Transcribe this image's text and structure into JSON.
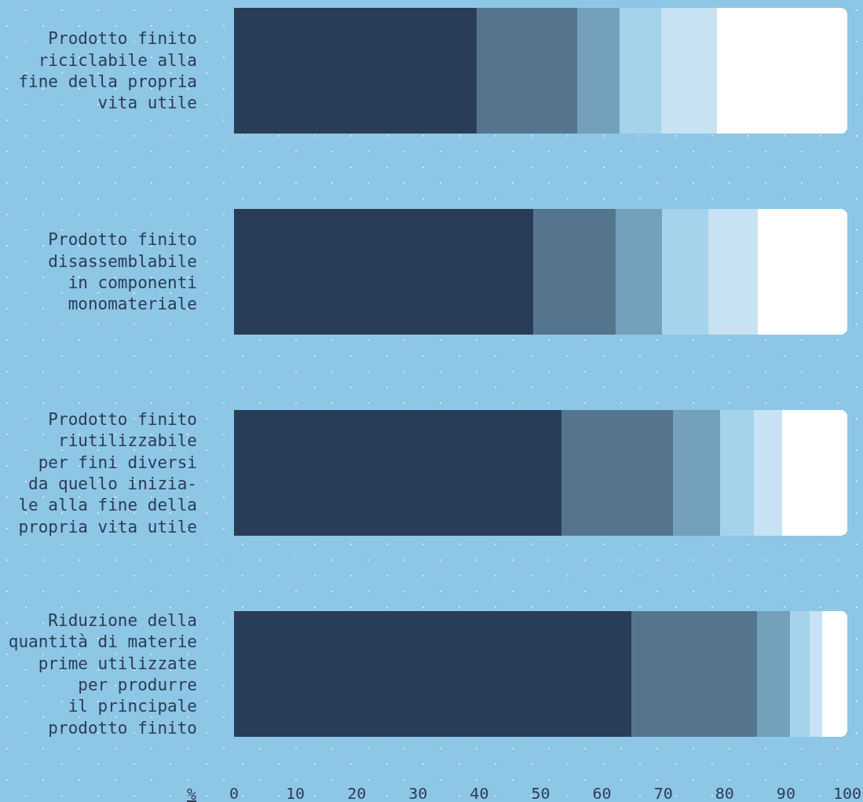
{
  "chart_data": {
    "type": "bar",
    "orientation": "horizontal",
    "stacked": true,
    "categories": [
      "Prodotto finito\nriciclabile alla\nfine della propria\nvita utile",
      "Prodotto finito\ndisassemblabile\nin componenti\nmonomateriale",
      "Prodotto finito\nriutilizzabile\nper fini diversi\nda quello inizia-\nle alla fine della\npropria vita utile",
      "Riduzione della\nquantità di materie\nprime utilizzate\nper produrre\nil principale\nprodotto finito"
    ],
    "series": [
      {
        "color": "#293d58",
        "values": [
          39.6,
          48.8,
          53.4,
          64.8
        ]
      },
      {
        "color": "#55758f",
        "values": [
          16.3,
          13.4,
          18.2,
          20.5
        ]
      },
      {
        "color": "#73a0bb",
        "values": [
          7.0,
          7.6,
          7.6,
          5.4
        ]
      },
      {
        "color": "#a6d3ec",
        "values": [
          6.8,
          7.5,
          5.5,
          3.1
        ]
      },
      {
        "color": "#c6e2f3",
        "values": [
          9.0,
          8.1,
          4.7,
          2.1
        ]
      },
      {
        "color": "#ffffff",
        "values": [
          21.3,
          14.6,
          10.6,
          4.1
        ]
      }
    ],
    "xlim": [
      0,
      100
    ],
    "xticks": [
      0,
      10,
      20,
      30,
      40,
      50,
      60,
      70,
      80,
      90,
      100
    ],
    "xlabel": "%"
  }
}
